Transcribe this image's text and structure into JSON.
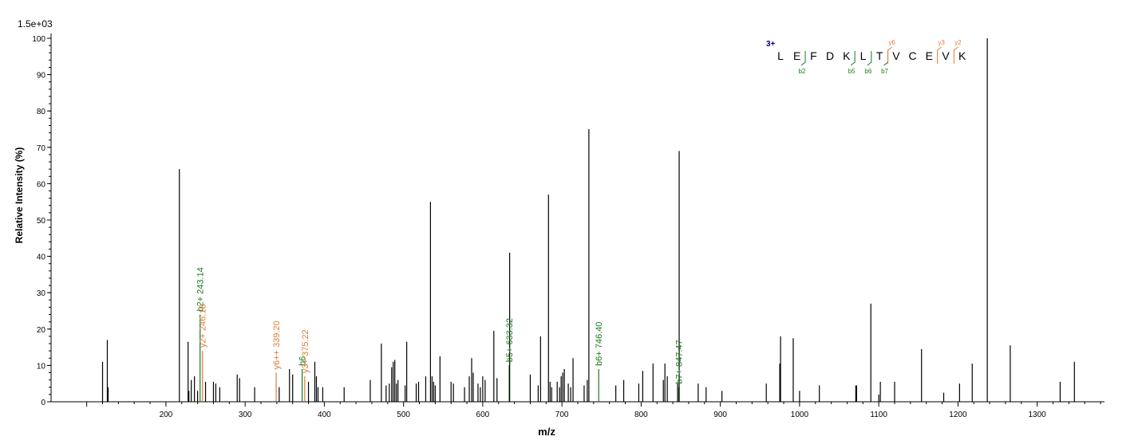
{
  "chart_data": {
    "type": "bar",
    "title": "",
    "scale_label": "1.5e+03",
    "xlabel": "m/z",
    "ylabel": "Relative   Intensity (%)",
    "xlim": [
      55,
      1385
    ],
    "ylim": [
      0,
      100
    ],
    "x_ticks": [
      200,
      300,
      400,
      500,
      600,
      700,
      800,
      900,
      1000,
      1100,
      1200,
      1300
    ],
    "y_ticks": [
      0,
      10,
      20,
      30,
      40,
      50,
      60,
      70,
      80,
      90,
      100
    ],
    "colors": {
      "unmatched": "#000000",
      "b_ion": "#1a7a1a",
      "y_ion": "#e07b39",
      "charge": "#00008b"
    },
    "peaks": [
      {
        "x": 120,
        "y": 11
      },
      {
        "x": 126,
        "y": 17
      },
      {
        "x": 127,
        "y": 4
      },
      {
        "x": 217,
        "y": 64
      },
      {
        "x": 228,
        "y": 16.5
      },
      {
        "x": 229,
        "y": 3
      },
      {
        "x": 232,
        "y": 6
      },
      {
        "x": 236,
        "y": 7
      },
      {
        "x": 240,
        "y": 3
      },
      {
        "x": 243.14,
        "y": 24,
        "label": "b2+ 243.14",
        "ion": "b"
      },
      {
        "x": 246.18,
        "y": 14,
        "label": "y2+ 246.18",
        "ion": "y"
      },
      {
        "x": 250,
        "y": 5.5
      },
      {
        "x": 260,
        "y": 5.5
      },
      {
        "x": 263,
        "y": 5
      },
      {
        "x": 268,
        "y": 4
      },
      {
        "x": 290,
        "y": 7.5
      },
      {
        "x": 293,
        "y": 6.5
      },
      {
        "x": 312,
        "y": 4
      },
      {
        "x": 339.2,
        "y": 8,
        "label": "y6++ 339.20",
        "ion": "y"
      },
      {
        "x": 343,
        "y": 4
      },
      {
        "x": 356,
        "y": 9
      },
      {
        "x": 360,
        "y": 7.5
      },
      {
        "x": 372,
        "y": 9,
        "label": "b6",
        "ion": "b"
      },
      {
        "x": 375.22,
        "y": 7,
        "label": "y3+ 375.22",
        "ion": "y"
      },
      {
        "x": 380,
        "y": 5.5
      },
      {
        "x": 388,
        "y": 11
      },
      {
        "x": 390,
        "y": 7
      },
      {
        "x": 392,
        "y": 4
      },
      {
        "x": 398,
        "y": 4
      },
      {
        "x": 425,
        "y": 4
      },
      {
        "x": 458,
        "y": 6
      },
      {
        "x": 472,
        "y": 16
      },
      {
        "x": 478,
        "y": 4.5
      },
      {
        "x": 482,
        "y": 5
      },
      {
        "x": 485,
        "y": 9.5
      },
      {
        "x": 487,
        "y": 11
      },
      {
        "x": 489,
        "y": 11.5
      },
      {
        "x": 491,
        "y": 5
      },
      {
        "x": 493,
        "y": 6
      },
      {
        "x": 502,
        "y": 4.5
      },
      {
        "x": 504,
        "y": 16.5
      },
      {
        "x": 516,
        "y": 5
      },
      {
        "x": 519,
        "y": 5.5
      },
      {
        "x": 528,
        "y": 7
      },
      {
        "x": 534,
        "y": 55
      },
      {
        "x": 536,
        "y": 7
      },
      {
        "x": 538,
        "y": 5.5
      },
      {
        "x": 540,
        "y": 4.5
      },
      {
        "x": 546,
        "y": 12.5
      },
      {
        "x": 560,
        "y": 5.5
      },
      {
        "x": 563,
        "y": 5
      },
      {
        "x": 577,
        "y": 4
      },
      {
        "x": 583,
        "y": 7
      },
      {
        "x": 586,
        "y": 12
      },
      {
        "x": 588,
        "y": 8
      },
      {
        "x": 594,
        "y": 5
      },
      {
        "x": 597,
        "y": 4
      },
      {
        "x": 600,
        "y": 7
      },
      {
        "x": 603,
        "y": 6
      },
      {
        "x": 614,
        "y": 19.5
      },
      {
        "x": 618,
        "y": 6.5
      },
      {
        "x": 633.32,
        "y": 10,
        "label": "b5+ 633.32",
        "ion": "b"
      },
      {
        "x": 634,
        "y": 41
      },
      {
        "x": 660,
        "y": 7.5
      },
      {
        "x": 670,
        "y": 4.5
      },
      {
        "x": 673,
        "y": 18
      },
      {
        "x": 683,
        "y": 57
      },
      {
        "x": 685,
        "y": 5.5
      },
      {
        "x": 687,
        "y": 4
      },
      {
        "x": 694,
        "y": 5.5
      },
      {
        "x": 697,
        "y": 4
      },
      {
        "x": 699,
        "y": 7
      },
      {
        "x": 701,
        "y": 8
      },
      {
        "x": 703,
        "y": 9
      },
      {
        "x": 708,
        "y": 5
      },
      {
        "x": 711,
        "y": 4
      },
      {
        "x": 714,
        "y": 12
      },
      {
        "x": 728,
        "y": 4.5
      },
      {
        "x": 732,
        "y": 6
      },
      {
        "x": 734,
        "y": 75
      },
      {
        "x": 746.4,
        "y": 9,
        "label": "b6+ 746.40",
        "ion": "b"
      },
      {
        "x": 768,
        "y": 4.5
      },
      {
        "x": 778,
        "y": 6
      },
      {
        "x": 797,
        "y": 5
      },
      {
        "x": 802,
        "y": 8.5
      },
      {
        "x": 815,
        "y": 10.5
      },
      {
        "x": 828,
        "y": 6
      },
      {
        "x": 830,
        "y": 10.5
      },
      {
        "x": 833,
        "y": 7
      },
      {
        "x": 846,
        "y": 5
      },
      {
        "x": 847.47,
        "y": 4,
        "label": "b7+ 847.47",
        "ion": "b"
      },
      {
        "x": 848,
        "y": 69
      },
      {
        "x": 872,
        "y": 5
      },
      {
        "x": 882,
        "y": 4
      },
      {
        "x": 902,
        "y": 3
      },
      {
        "x": 958,
        "y": 5
      },
      {
        "x": 975,
        "y": 10.5
      },
      {
        "x": 976,
        "y": 18
      },
      {
        "x": 992,
        "y": 17.5
      },
      {
        "x": 1000,
        "y": 3
      },
      {
        "x": 1025,
        "y": 4.5
      },
      {
        "x": 1071,
        "y": 4.5
      },
      {
        "x": 1072,
        "y": 4.5
      },
      {
        "x": 1090,
        "y": 27
      },
      {
        "x": 1100,
        "y": 2
      },
      {
        "x": 1102,
        "y": 5.5
      },
      {
        "x": 1120,
        "y": 5.5
      },
      {
        "x": 1154,
        "y": 14.5
      },
      {
        "x": 1182,
        "y": 2.5
      },
      {
        "x": 1202,
        "y": 5
      },
      {
        "x": 1218,
        "y": 10.5
      },
      {
        "x": 1237,
        "y": 100
      },
      {
        "x": 1266,
        "y": 15.5
      },
      {
        "x": 1329,
        "y": 5.5
      },
      {
        "x": 1347,
        "y": 11
      }
    ],
    "sequence": {
      "charge": "3+",
      "residues": [
        "L",
        "E",
        "F",
        "D",
        "K",
        "L",
        "T",
        "V",
        "C",
        "E",
        "V",
        "K"
      ],
      "b_ions": [
        {
          "after": 2,
          "label": "b2"
        },
        {
          "after": 5,
          "label": "b5"
        },
        {
          "after": 6,
          "label": "b6"
        },
        {
          "after": 7,
          "label": "b7"
        }
      ],
      "y_ions": [
        {
          "before": 7,
          "label": "y6"
        },
        {
          "before": 10,
          "label": "y3"
        },
        {
          "before": 11,
          "label": "y2"
        }
      ]
    }
  }
}
